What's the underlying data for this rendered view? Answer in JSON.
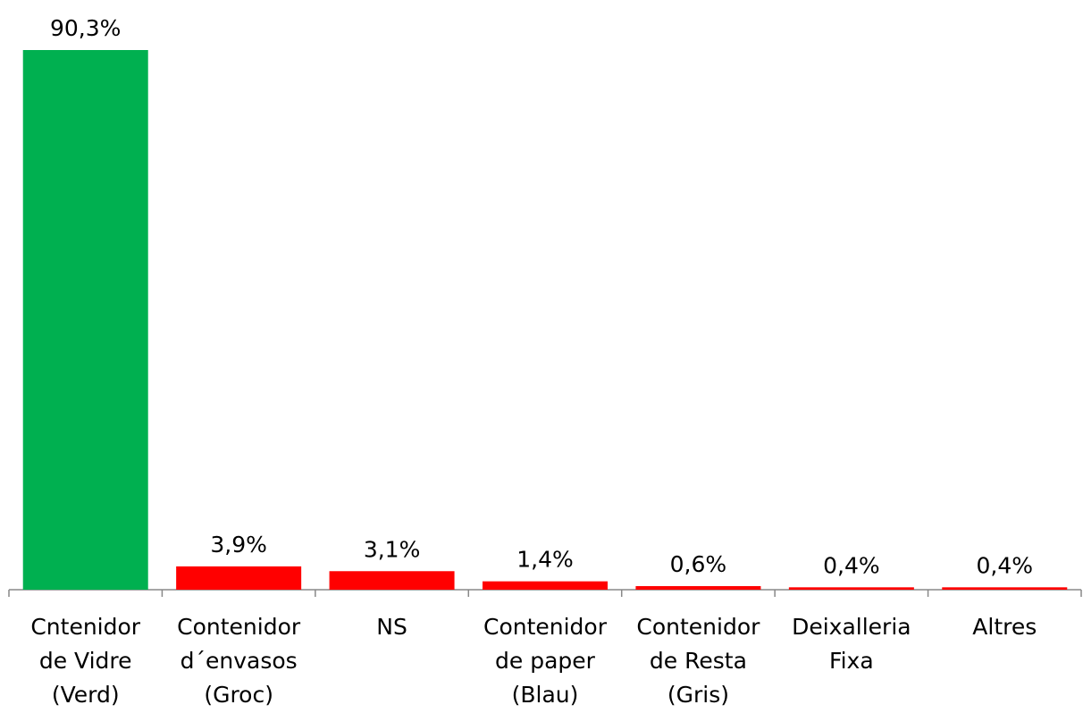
{
  "chart_data": {
    "type": "bar",
    "categories": [
      "Cntenidor\nde Vidre\n(Verd)",
      "Contenidor\nd´envasos\n(Groc)",
      "NS",
      "Contenidor\nde paper\n(Blau)",
      "Contenidor\nde Resta\n(Gris)",
      "Deixalleria\nFixa",
      "Altres"
    ],
    "values": [
      90.3,
      3.9,
      3.1,
      1.4,
      0.6,
      0.4,
      0.4
    ],
    "value_labels": [
      "90,3%",
      "3,9%",
      "3,1%",
      "1,4%",
      "0,6%",
      "0,4%",
      "0,4%"
    ],
    "colors": [
      "#00b050",
      "#ff0000",
      "#ff0000",
      "#ff0000",
      "#ff0000",
      "#ff0000",
      "#ff0000"
    ]
  }
}
